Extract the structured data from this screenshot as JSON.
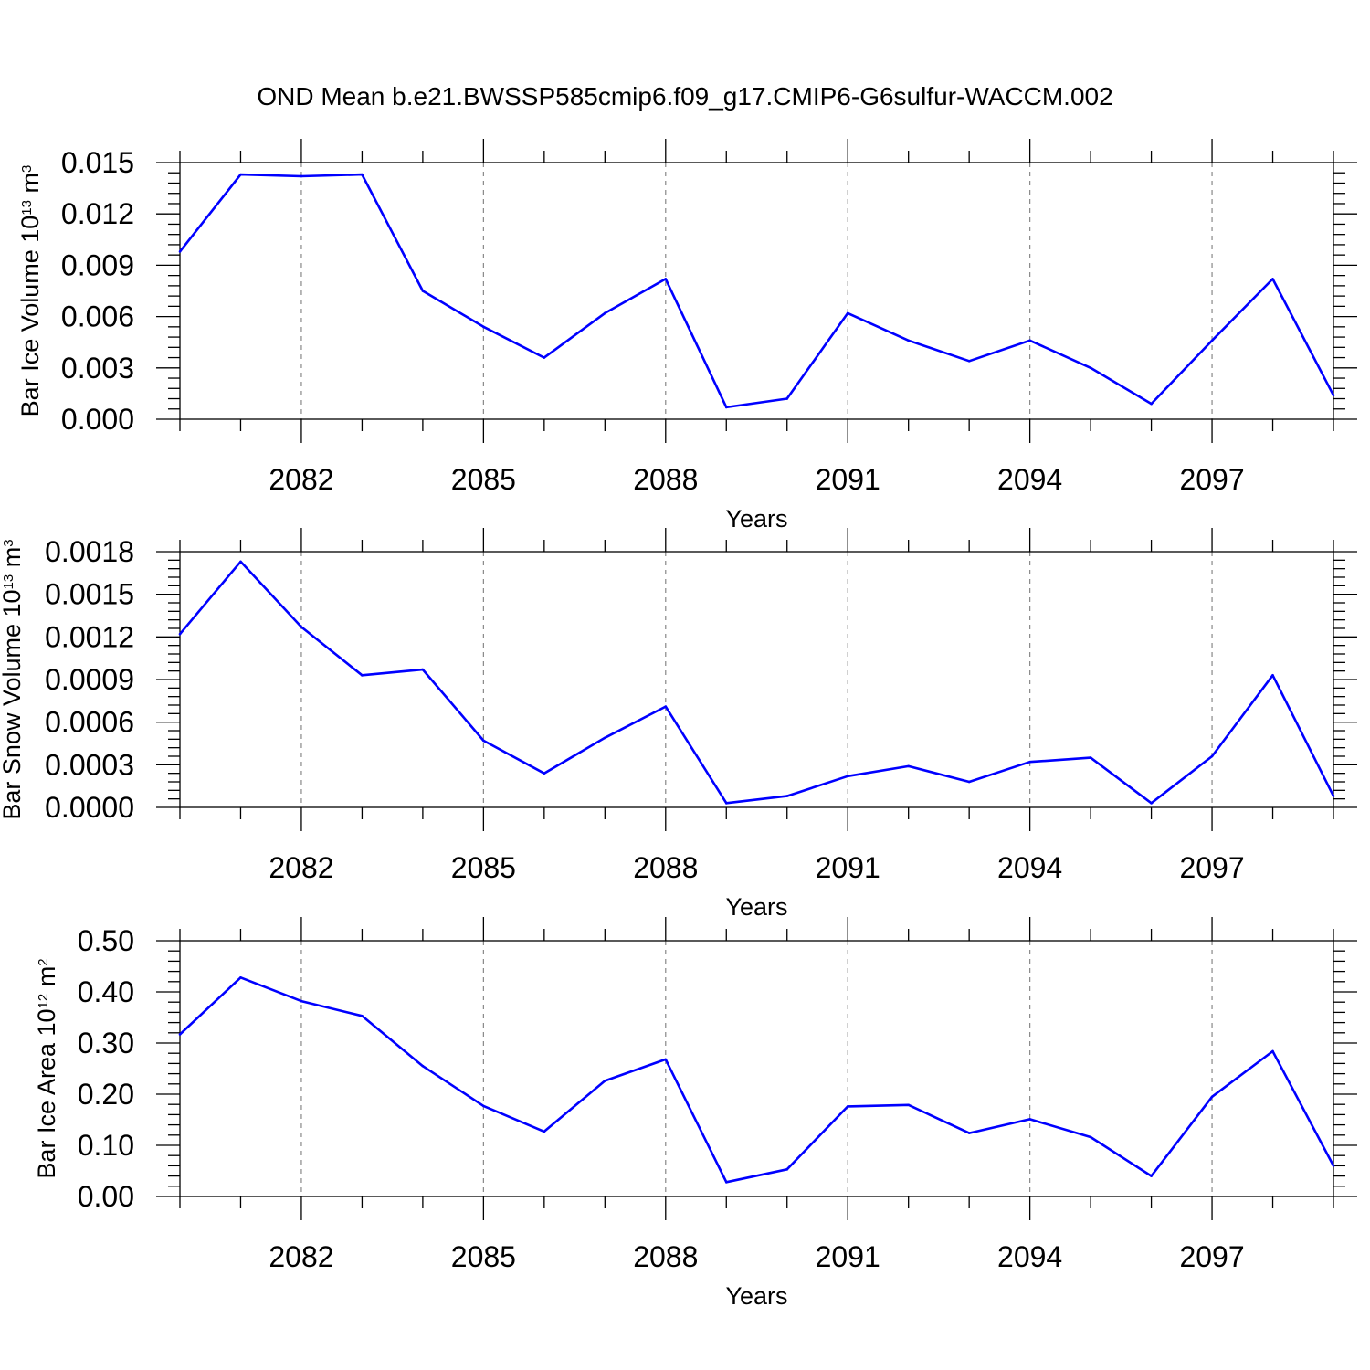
{
  "title": "OND Mean b.e21.BWSSP585cmip6.f09_g17.CMIP6-G6sulfur-WACCM.002",
  "colors": {
    "line": "#0000ff",
    "grid": "#888888",
    "axis": "#000000"
  },
  "chart_data": [
    {
      "type": "line",
      "xlabel": "Years",
      "ylabel": {
        "prefix": "Bar Ice Volume 10",
        "exp": "13",
        "unit": " m",
        "unit_exp": "3"
      },
      "xlim": [
        2080,
        2099
      ],
      "x_tick_labels": [
        "2082",
        "2085",
        "2088",
        "2091",
        "2094",
        "2097"
      ],
      "ylim": [
        0,
        0.015
      ],
      "y_tick_labels": [
        "0.000",
        "0.003",
        "0.006",
        "0.009",
        "0.012",
        "0.015"
      ],
      "x": [
        2080,
        2081,
        2082,
        2083,
        2084,
        2085,
        2086,
        2087,
        2088,
        2089,
        2090,
        2091,
        2092,
        2093,
        2094,
        2095,
        2096,
        2097,
        2098,
        2099
      ],
      "series": [
        {
          "values": [
            0.0098,
            0.0143,
            0.0142,
            0.0143,
            0.0075,
            0.0054,
            0.0036,
            0.0062,
            0.0082,
            0.0007,
            0.0012,
            0.0062,
            0.0046,
            0.0034,
            0.0046,
            0.003,
            0.0009,
            0.0046,
            0.0082,
            0.0014
          ]
        }
      ]
    },
    {
      "type": "line",
      "xlabel": "Years",
      "ylabel": {
        "prefix": "Bar Snow Volume 10",
        "exp": "13",
        "unit": " m",
        "unit_exp": "3"
      },
      "xlim": [
        2080,
        2099
      ],
      "x_tick_labels": [
        "2082",
        "2085",
        "2088",
        "2091",
        "2094",
        "2097"
      ],
      "ylim": [
        0,
        0.0018
      ],
      "y_tick_labels": [
        "0.0000",
        "0.0003",
        "0.0006",
        "0.0009",
        "0.0012",
        "0.0015",
        "0.0018"
      ],
      "x": [
        2080,
        2081,
        2082,
        2083,
        2084,
        2085,
        2086,
        2087,
        2088,
        2089,
        2090,
        2091,
        2092,
        2093,
        2094,
        2095,
        2096,
        2097,
        2098,
        2099
      ],
      "series": [
        {
          "values": [
            0.00122,
            0.00173,
            0.00127,
            0.00093,
            0.00097,
            0.00047,
            0.00024,
            0.00049,
            0.00071,
            3e-05,
            8e-05,
            0.00022,
            0.00029,
            0.00018,
            0.00032,
            0.00035,
            3e-05,
            0.00036,
            0.00093,
            8e-05
          ]
        }
      ]
    },
    {
      "type": "line",
      "xlabel": "Years",
      "ylabel": {
        "prefix": "Bar Ice Area 10",
        "exp": "12",
        "unit": " m",
        "unit_exp": "2"
      },
      "xlim": [
        2080,
        2099
      ],
      "x_tick_labels": [
        "2082",
        "2085",
        "2088",
        "2091",
        "2094",
        "2097"
      ],
      "ylim": [
        0,
        0.5
      ],
      "y_tick_labels": [
        "0.00",
        "0.10",
        "0.20",
        "0.30",
        "0.40",
        "0.50"
      ],
      "x": [
        2080,
        2081,
        2082,
        2083,
        2084,
        2085,
        2086,
        2087,
        2088,
        2089,
        2090,
        2091,
        2092,
        2093,
        2094,
        2095,
        2096,
        2097,
        2098,
        2099
      ],
      "series": [
        {
          "values": [
            0.317,
            0.428,
            0.382,
            0.353,
            0.255,
            0.177,
            0.127,
            0.226,
            0.268,
            0.028,
            0.053,
            0.176,
            0.179,
            0.124,
            0.151,
            0.116,
            0.04,
            0.195,
            0.284,
            0.06
          ]
        }
      ]
    }
  ]
}
